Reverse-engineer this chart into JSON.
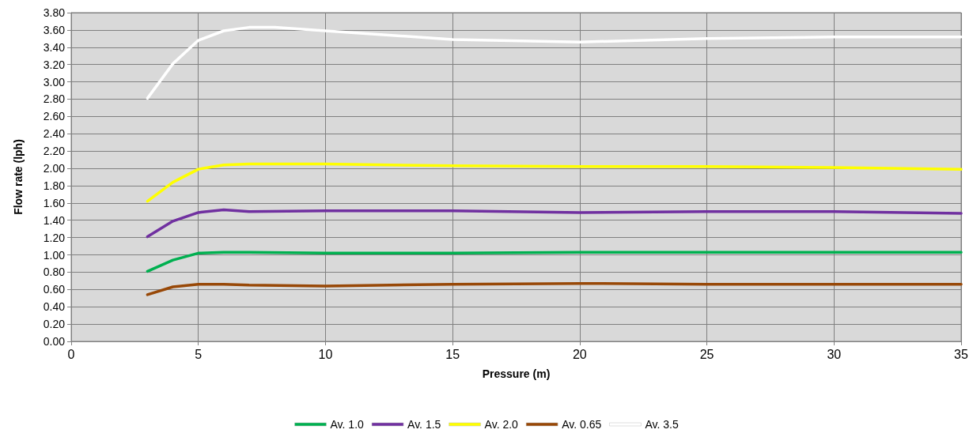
{
  "chart_data": {
    "type": "line",
    "xlabel": "Pressure (m)",
    "ylabel": "Flow rate (lph)",
    "x": [
      3,
      4,
      5,
      6,
      7,
      10,
      15,
      20,
      25,
      30,
      35
    ],
    "series": [
      {
        "name": "Av. 1.0",
        "color": "#00b050",
        "values": [
          0.81,
          0.94,
          1.02,
          1.03,
          1.03,
          1.02,
          1.02,
          1.03,
          1.03,
          1.03,
          1.03
        ]
      },
      {
        "name": "Av. 1.5",
        "color": "#7030a0",
        "values": [
          1.21,
          1.39,
          1.49,
          1.52,
          1.5,
          1.51,
          1.51,
          1.49,
          1.5,
          1.5,
          1.48
        ]
      },
      {
        "name": "Av. 2.0",
        "color": "#ffff00",
        "values": [
          1.62,
          1.84,
          1.99,
          2.04,
          2.05,
          2.05,
          2.03,
          2.02,
          2.02,
          2.01,
          1.99
        ]
      },
      {
        "name": "Av. 0.65",
        "color": "#984807",
        "values": [
          0.54,
          0.63,
          0.66,
          0.66,
          0.65,
          0.64,
          0.66,
          0.67,
          0.66,
          0.66,
          0.66
        ]
      },
      {
        "name": "Av. 3.5",
        "color": "#ffffff",
        "x": [
          3,
          4,
          5,
          6,
          7,
          8,
          10,
          15,
          20,
          25,
          30,
          35
        ],
        "values": [
          2.81,
          3.21,
          3.48,
          3.59,
          3.63,
          3.63,
          3.59,
          3.49,
          3.46,
          3.5,
          3.52,
          3.52
        ]
      }
    ],
    "xlim": [
      0,
      35
    ],
    "xticks": [
      0,
      5,
      10,
      15,
      20,
      25,
      30,
      35
    ],
    "ylim": [
      0,
      3.8
    ],
    "yticks": [
      {
        "value": 0,
        "label": "0.00"
      },
      {
        "value": 0.2,
        "label": "0.20"
      },
      {
        "value": 0.4,
        "label": "0.40"
      },
      {
        "value": 0.6,
        "label": "0.60"
      },
      {
        "value": 0.8,
        "label": "0.80"
      },
      {
        "value": 1,
        "label": "1.00"
      },
      {
        "value": 1.2,
        "label": "1.20"
      },
      {
        "value": 1.4,
        "label": "1.40"
      },
      {
        "value": 1.6,
        "label": "1.60"
      },
      {
        "value": 1.8,
        "label": "1.80"
      },
      {
        "value": 2,
        "label": "2.00"
      },
      {
        "value": 2.2,
        "label": "2.20"
      },
      {
        "value": 2.4,
        "label": "2.40"
      },
      {
        "value": 2.6,
        "label": "2.60"
      },
      {
        "value": 2.8,
        "label": "2.80"
      },
      {
        "value": 3,
        "label": "3.00"
      },
      {
        "value": 3.2,
        "label": "3.20"
      },
      {
        "value": 3.4,
        "label": "3.40"
      },
      {
        "value": 3.6,
        "label": "3.60"
      },
      {
        "value": 3.8,
        "label": "3.80"
      }
    ],
    "grid": true,
    "legend": "bottom",
    "marker": "none",
    "line_style": "solid"
  }
}
